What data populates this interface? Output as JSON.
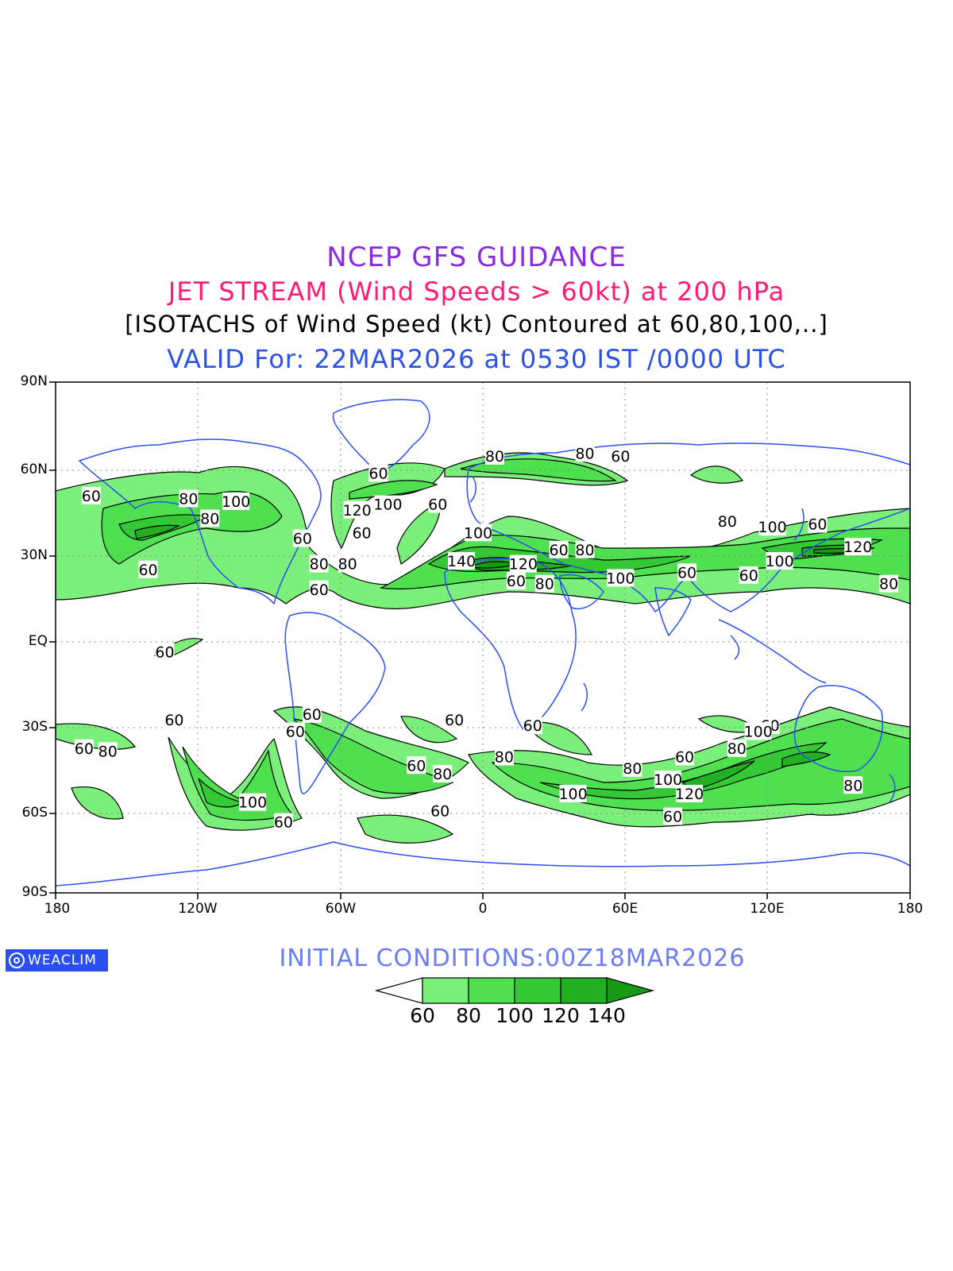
{
  "titles": {
    "line1": "NCEP GFS GUIDANCE",
    "line2": "JET STREAM (Wind Speeds > 60kt) at 200 hPa",
    "line3": "[ISOTACHS of Wind Speed (kt) Contoured at 60,80,100,..]",
    "line4": "VALID For: 22MAR2026 at 0530 IST /0000 UTC"
  },
  "colors": {
    "line1": "#8a2be2",
    "line2": "#ff1a75",
    "line3": "#000000",
    "line4": "#2a52e6",
    "coast": "#2a4ff0",
    "logo_bg": "#2a4ff0",
    "init": "#6a7ef0",
    "shade_60": "#7af07a",
    "shade_80": "#4fe04f",
    "shade_100": "#34c834",
    "shade_120": "#22b022",
    "shade_140": "#169a16"
  },
  "axes": {
    "lat_labels": [
      "90N",
      "60N",
      "30N",
      "EQ",
      "30S",
      "60S",
      "90S"
    ],
    "lon_labels": [
      "180",
      "120W",
      "60W",
      "0",
      "60E",
      "120E",
      "180"
    ]
  },
  "contour_labels": [
    {
      "t": "80",
      "lon": 5,
      "lat": 64
    },
    {
      "t": "80",
      "lon": 43,
      "lat": 65
    },
    {
      "t": "60",
      "lon": 58,
      "lat": 64
    },
    {
      "t": "60",
      "lon": -44,
      "lat": 58
    },
    {
      "t": "100",
      "lon": -40,
      "lat": 47
    },
    {
      "t": "60",
      "lon": -19,
      "lat": 47
    },
    {
      "t": "120",
      "lon": -53,
      "lat": 45
    },
    {
      "t": "60",
      "lon": -51,
      "lat": 37
    },
    {
      "t": "60",
      "lon": -165,
      "lat": 50
    },
    {
      "t": "80",
      "lon": -124,
      "lat": 49
    },
    {
      "t": "100",
      "lon": -104,
      "lat": 48
    },
    {
      "t": "80",
      "lon": -115,
      "lat": 42
    },
    {
      "t": "60",
      "lon": -76,
      "lat": 35
    },
    {
      "t": "80",
      "lon": -69,
      "lat": 26
    },
    {
      "t": "80",
      "lon": -57,
      "lat": 26
    },
    {
      "t": "60",
      "lon": -141,
      "lat": 24
    },
    {
      "t": "60",
      "lon": -69,
      "lat": 17
    },
    {
      "t": "100",
      "lon": -2,
      "lat": 37
    },
    {
      "t": "140",
      "lon": -9,
      "lat": 27
    },
    {
      "t": "120",
      "lon": 17,
      "lat": 26
    },
    {
      "t": "60",
      "lon": 32,
      "lat": 31
    },
    {
      "t": "80",
      "lon": 43,
      "lat": 31
    },
    {
      "t": "60",
      "lon": 14,
      "lat": 20
    },
    {
      "t": "80",
      "lon": 26,
      "lat": 19
    },
    {
      "t": "100",
      "lon": 58,
      "lat": 21
    },
    {
      "t": "80",
      "lon": 103,
      "lat": 41
    },
    {
      "t": "100",
      "lon": 122,
      "lat": 39
    },
    {
      "t": "60",
      "lon": 141,
      "lat": 40
    },
    {
      "t": "120",
      "lon": 158,
      "lat": 32
    },
    {
      "t": "100",
      "lon": 125,
      "lat": 27
    },
    {
      "t": "60",
      "lon": 112,
      "lat": 22
    },
    {
      "t": "80",
      "lon": 171,
      "lat": 19
    },
    {
      "t": "60",
      "lon": 86,
      "lat": 23
    },
    {
      "t": "60",
      "lon": -134,
      "lat": -5
    },
    {
      "t": "60",
      "lon": -130,
      "lat": -29
    },
    {
      "t": "60",
      "lon": -72,
      "lat": -27
    },
    {
      "t": "60",
      "lon": -79,
      "lat": -33
    },
    {
      "t": "60",
      "lon": -12,
      "lat": -29
    },
    {
      "t": "60",
      "lon": -168,
      "lat": -39
    },
    {
      "t": "80",
      "lon": -158,
      "lat": -40
    },
    {
      "t": "60",
      "lon": -28,
      "lat": -45
    },
    {
      "t": "80",
      "lon": -17,
      "lat": -48
    },
    {
      "t": "80",
      "lon": 9,
      "lat": -42
    },
    {
      "t": "60",
      "lon": 21,
      "lat": -31
    },
    {
      "t": "80",
      "lon": 63,
      "lat": -46
    },
    {
      "t": "60",
      "lon": 85,
      "lat": -42
    },
    {
      "t": "100",
      "lon": 78,
      "lat": -50
    },
    {
      "t": "120",
      "lon": 87,
      "lat": -55
    },
    {
      "t": "100",
      "lon": 38,
      "lat": -55
    },
    {
      "t": "60",
      "lon": 80,
      "lat": -63
    },
    {
      "t": "80",
      "lon": 107,
      "lat": -39
    },
    {
      "t": "60",
      "lon": 121,
      "lat": -31
    },
    {
      "t": "100",
      "lon": 116,
      "lat": -33
    },
    {
      "t": "80",
      "lon": 156,
      "lat": -52
    },
    {
      "t": "100",
      "lon": -97,
      "lat": -58
    },
    {
      "t": "60",
      "lon": -84,
      "lat": -65
    },
    {
      "t": "60",
      "lon": -18,
      "lat": -61
    }
  ],
  "footer": {
    "logo_text": "WEACLIM",
    "initial_conditions": "INITIAL CONDITIONS:00Z18MAR2026"
  },
  "legend": {
    "levels": [
      "60",
      "80",
      "100",
      "120",
      "140"
    ]
  }
}
